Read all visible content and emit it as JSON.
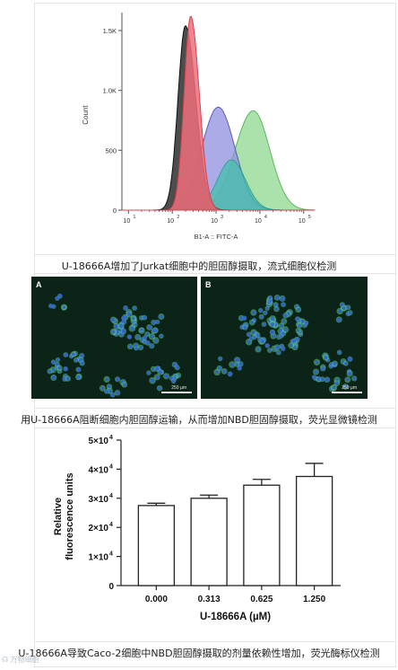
{
  "histogram": {
    "ylabel": "Count",
    "xlabel": "B1-A :: FITC-A",
    "y_ticks": [
      "0",
      "500",
      "1.0K",
      "1.5K"
    ],
    "x_ticks": [
      {
        "base": "10",
        "exp": "1"
      },
      {
        "base": "10",
        "exp": "2"
      },
      {
        "base": "10",
        "exp": "3"
      },
      {
        "base": "10",
        "exp": "4"
      },
      {
        "base": "10",
        "exp": "5"
      }
    ],
    "colors": {
      "black": "#3a3a3a",
      "red": "#ef6f7a",
      "blue": "#8f8fe0",
      "green": "#8fd88f",
      "teal": "#3fc0a8"
    }
  },
  "caption1": "U-18666A增加了Jurkat细胞中的胆固醇摄取，流式细胞仪检测",
  "micrograph": {
    "panel_a_label": "A",
    "panel_b_label": "B",
    "scale_a": "250 µm",
    "scale_b": "250 µm"
  },
  "caption2": "用U-18666A阻断细胞内胆固醇运输，从而增加NBD胆固醇摄取，荧光显微镜检测",
  "chart_data": {
    "type": "bar",
    "categories": [
      "0.000",
      "0.313",
      "0.625",
      "1.250"
    ],
    "values": [
      27500,
      30000,
      34500,
      37500
    ],
    "errors": [
      800,
      1100,
      2000,
      4500
    ],
    "ylabel_line1": "Relative",
    "ylabel_line2": "fluorescence units",
    "xlabel": "U-18666A (µM)",
    "ylim": [
      0,
      50000
    ],
    "y_ticks": [
      {
        "value": 0,
        "mant": "0",
        "exp": ""
      },
      {
        "value": 10000,
        "mant": "1×10",
        "exp": "4"
      },
      {
        "value": 20000,
        "mant": "2×10",
        "exp": "4"
      },
      {
        "value": 30000,
        "mant": "3×10",
        "exp": "4"
      },
      {
        "value": 40000,
        "mant": "4×10",
        "exp": "4"
      },
      {
        "value": 50000,
        "mant": "5×10",
        "exp": "4"
      }
    ]
  },
  "caption3": "U-18666A导致Caco-2细胞中NBD胆固醇摄取的剂量依赖性增加，荧光酶标仪检测",
  "watermark": "☊ 万物细胞"
}
